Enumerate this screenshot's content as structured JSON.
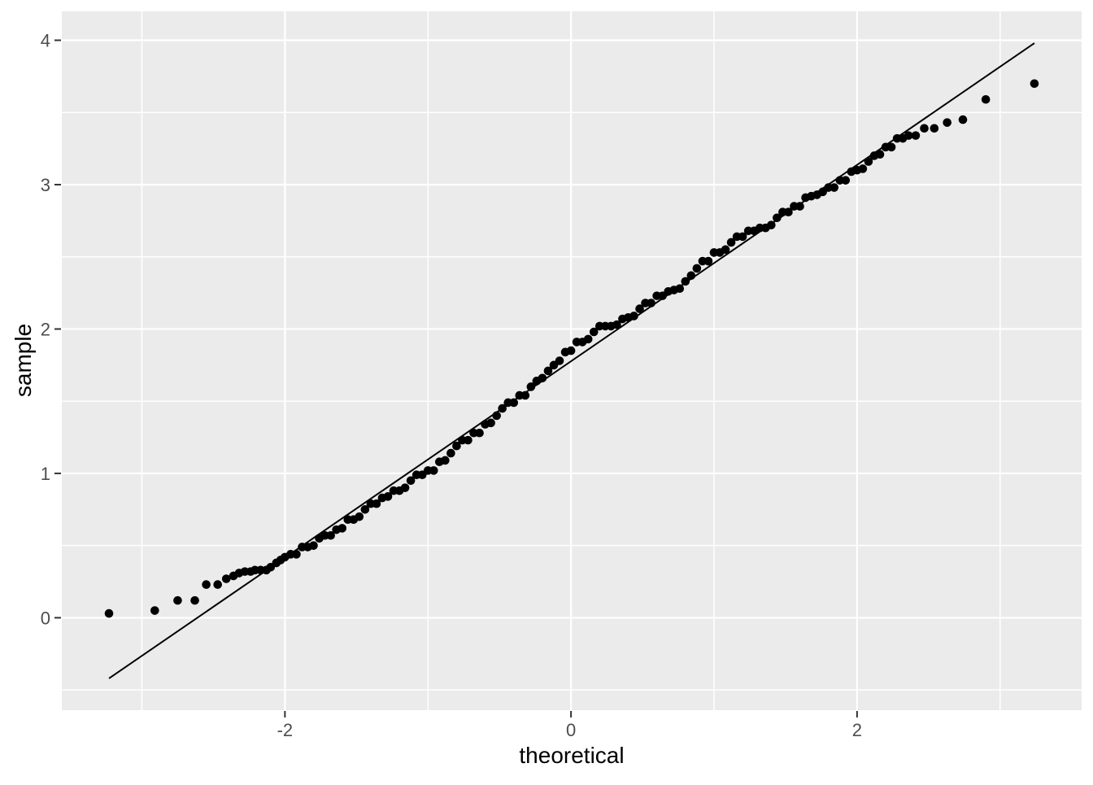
{
  "chart_data": {
    "type": "scatter",
    "subtype": "qq-plot",
    "title": "",
    "xlabel": "theoretical",
    "ylabel": "sample",
    "x_ticks": [
      -2,
      0,
      2
    ],
    "y_ticks": [
      0,
      1,
      2,
      3,
      4
    ],
    "x_minor_gridlines": [
      -3,
      -1,
      1,
      3
    ],
    "y_minor_gridlines": [
      -0.5,
      0.5,
      1.5,
      2.5,
      3.5
    ],
    "xlim": [
      -3.56,
      3.57
    ],
    "ylim": [
      -0.64,
      4.2
    ],
    "grid": "major+minor",
    "legend_position": "none",
    "reference_line": {
      "x1": -3.23,
      "y1": -0.42,
      "x2": 3.24,
      "y2": 3.98,
      "slope": 0.68,
      "intercept": 1.78
    },
    "points": [
      [
        -3.23,
        0.03
      ],
      [
        -2.91,
        0.05
      ],
      [
        -2.75,
        0.12
      ],
      [
        -2.63,
        0.12
      ],
      [
        -2.55,
        0.23
      ],
      [
        -2.47,
        0.23
      ],
      [
        -2.41,
        0.27
      ],
      [
        -2.36,
        0.29
      ],
      [
        -2.32,
        0.31
      ],
      [
        -2.28,
        0.32
      ],
      [
        -2.24,
        0.32
      ],
      [
        -2.21,
        0.33
      ],
      [
        -2.17,
        0.33
      ],
      [
        -2.13,
        0.33
      ],
      [
        -2.1,
        0.35
      ],
      [
        -2.06,
        0.38
      ],
      [
        -2.03,
        0.4
      ],
      [
        -2.0,
        0.42
      ],
      [
        -1.96,
        0.44
      ],
      [
        -1.92,
        0.44
      ],
      [
        -1.88,
        0.49
      ],
      [
        -1.84,
        0.49
      ],
      [
        -1.8,
        0.5
      ],
      [
        -1.76,
        0.55
      ],
      [
        -1.72,
        0.57
      ],
      [
        -1.68,
        0.57
      ],
      [
        -1.64,
        0.61
      ],
      [
        -1.6,
        0.62
      ],
      [
        -1.56,
        0.68
      ],
      [
        -1.52,
        0.68
      ],
      [
        -1.48,
        0.7
      ],
      [
        -1.44,
        0.75
      ],
      [
        -1.4,
        0.79
      ],
      [
        -1.36,
        0.79
      ],
      [
        -1.32,
        0.83
      ],
      [
        -1.28,
        0.84
      ],
      [
        -1.24,
        0.88
      ],
      [
        -1.2,
        0.88
      ],
      [
        -1.16,
        0.9
      ],
      [
        -1.12,
        0.95
      ],
      [
        -1.08,
        0.99
      ],
      [
        -1.04,
        0.99
      ],
      [
        -1.0,
        1.02
      ],
      [
        -0.96,
        1.02
      ],
      [
        -0.92,
        1.08
      ],
      [
        -0.88,
        1.09
      ],
      [
        -0.84,
        1.14
      ],
      [
        -0.8,
        1.19
      ],
      [
        -0.76,
        1.23
      ],
      [
        -0.72,
        1.23
      ],
      [
        -0.68,
        1.28
      ],
      [
        -0.64,
        1.28
      ],
      [
        -0.6,
        1.34
      ],
      [
        -0.56,
        1.35
      ],
      [
        -0.52,
        1.4
      ],
      [
        -0.48,
        1.45
      ],
      [
        -0.44,
        1.49
      ],
      [
        -0.4,
        1.49
      ],
      [
        -0.36,
        1.54
      ],
      [
        -0.32,
        1.54
      ],
      [
        -0.28,
        1.6
      ],
      [
        -0.24,
        1.64
      ],
      [
        -0.2,
        1.66
      ],
      [
        -0.16,
        1.71
      ],
      [
        -0.12,
        1.75
      ],
      [
        -0.08,
        1.78
      ],
      [
        -0.04,
        1.84
      ],
      [
        0.0,
        1.85
      ],
      [
        0.04,
        1.91
      ],
      [
        0.08,
        1.91
      ],
      [
        0.12,
        1.93
      ],
      [
        0.16,
        1.98
      ],
      [
        0.2,
        2.02
      ],
      [
        0.24,
        2.02
      ],
      [
        0.28,
        2.02
      ],
      [
        0.32,
        2.03
      ],
      [
        0.36,
        2.07
      ],
      [
        0.4,
        2.08
      ],
      [
        0.44,
        2.09
      ],
      [
        0.48,
        2.14
      ],
      [
        0.52,
        2.18
      ],
      [
        0.56,
        2.18
      ],
      [
        0.6,
        2.23
      ],
      [
        0.64,
        2.23
      ],
      [
        0.68,
        2.26
      ],
      [
        0.72,
        2.27
      ],
      [
        0.76,
        2.28
      ],
      [
        0.8,
        2.33
      ],
      [
        0.84,
        2.37
      ],
      [
        0.88,
        2.42
      ],
      [
        0.92,
        2.47
      ],
      [
        0.96,
        2.47
      ],
      [
        1.0,
        2.53
      ],
      [
        1.04,
        2.53
      ],
      [
        1.08,
        2.55
      ],
      [
        1.12,
        2.6
      ],
      [
        1.16,
        2.64
      ],
      [
        1.2,
        2.64
      ],
      [
        1.24,
        2.68
      ],
      [
        1.28,
        2.68
      ],
      [
        1.32,
        2.7
      ],
      [
        1.36,
        2.7
      ],
      [
        1.4,
        2.72
      ],
      [
        1.44,
        2.77
      ],
      [
        1.48,
        2.81
      ],
      [
        1.52,
        2.81
      ],
      [
        1.56,
        2.85
      ],
      [
        1.6,
        2.85
      ],
      [
        1.64,
        2.91
      ],
      [
        1.68,
        2.92
      ],
      [
        1.72,
        2.93
      ],
      [
        1.76,
        2.95
      ],
      [
        1.8,
        2.98
      ],
      [
        1.84,
        2.98
      ],
      [
        1.88,
        3.03
      ],
      [
        1.92,
        3.03
      ],
      [
        1.96,
        3.09
      ],
      [
        2.0,
        3.1
      ],
      [
        2.04,
        3.11
      ],
      [
        2.08,
        3.16
      ],
      [
        2.12,
        3.2
      ],
      [
        2.16,
        3.21
      ],
      [
        2.2,
        3.26
      ],
      [
        2.24,
        3.26
      ],
      [
        2.28,
        3.32
      ],
      [
        2.32,
        3.32
      ],
      [
        2.36,
        3.34
      ],
      [
        2.41,
        3.34
      ],
      [
        2.47,
        3.39
      ],
      [
        2.54,
        3.39
      ],
      [
        2.63,
        3.43
      ],
      [
        2.74,
        3.45
      ],
      [
        2.9,
        3.59
      ],
      [
        3.24,
        3.7
      ]
    ]
  },
  "style": {
    "panel_bg": "#ebebeb",
    "outer_bg": "#ffffff",
    "grid_color": "#ffffff",
    "point_color": "#000000",
    "line_color": "#000000",
    "tick_label_color": "#4d4d4d",
    "tick_mark_color": "#333333",
    "axis_title_color": "#000000"
  }
}
